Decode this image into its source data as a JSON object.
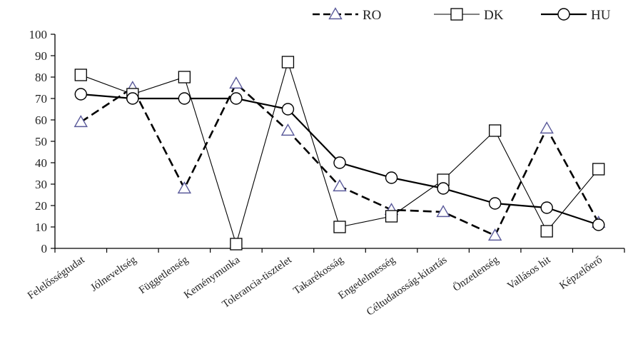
{
  "chart_data": {
    "type": "line",
    "categories": [
      "Felelősségtudat",
      "Jólneveltség",
      "Függetlenség",
      "Keménymunka",
      "Tolerancia-tisztelet",
      "Takarékosság",
      "Engedelmesség",
      "Céltudatosság-kitartás",
      "Önzetlenség",
      "Vallásos hit",
      "Képzelőerő"
    ],
    "series": [
      {
        "name": "RO",
        "marker": "triangle",
        "style": "dashed",
        "color": "#000000",
        "marker_color": "#5a5a9a",
        "values": [
          59,
          75,
          28,
          77,
          55,
          29,
          18,
          17,
          6,
          56,
          12
        ]
      },
      {
        "name": "DK",
        "marker": "square",
        "style": "thin",
        "color": "#000000",
        "marker_color": "#000000",
        "values": [
          81,
          72,
          80,
          2,
          87,
          10,
          15,
          32,
          55,
          8,
          37
        ]
      },
      {
        "name": "HU",
        "marker": "circle",
        "style": "thick",
        "color": "#000000",
        "marker_color": "#000000",
        "values": [
          72,
          70,
          70,
          70,
          65,
          40,
          33,
          28,
          21,
          19,
          11
        ]
      }
    ],
    "ylim": [
      0,
      100
    ],
    "yticks": [
      0,
      10,
      20,
      30,
      40,
      50,
      60,
      70,
      80,
      90,
      100
    ],
    "grid": false,
    "legend_position": "top-right",
    "title": "",
    "xlabel": "",
    "ylabel": ""
  }
}
